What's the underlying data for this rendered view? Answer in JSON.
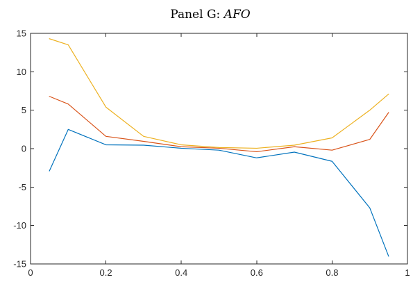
{
  "chart_data": {
    "type": "line",
    "title_prefix": "Panel G: ",
    "title_emphasis": "AFO",
    "xlabel": "",
    "ylabel": "",
    "xlim": [
      0,
      1
    ],
    "ylim": [
      -15,
      15
    ],
    "x_ticks": [
      0,
      0.2,
      0.4,
      0.6,
      0.8,
      1
    ],
    "x_tick_labels": [
      "0",
      "0.2",
      "0.4",
      "0.6",
      "0.8",
      "1"
    ],
    "y_ticks": [
      15,
      10,
      5,
      0,
      -5,
      -10,
      -15
    ],
    "y_tick_labels": [
      "15",
      "10",
      "5",
      "0",
      "-5",
      "-10",
      "-15"
    ],
    "grid": false,
    "legend": "none",
    "x": [
      0.05,
      0.1,
      0.2,
      0.3,
      0.4,
      0.5,
      0.6,
      0.7,
      0.8,
      0.9,
      0.95
    ],
    "series": [
      {
        "color": "#0072BD",
        "values": [
          -2.9,
          2.5,
          0.5,
          0.45,
          0.05,
          -0.2,
          -1.2,
          -0.45,
          -1.65,
          -7.7,
          -14.0
        ]
      },
      {
        "color": "#D95319",
        "values": [
          6.8,
          5.8,
          1.6,
          0.95,
          0.25,
          0.05,
          -0.4,
          0.25,
          -0.2,
          1.2,
          4.7
        ]
      },
      {
        "color": "#EDB120",
        "values": [
          14.3,
          13.5,
          5.4,
          1.6,
          0.5,
          0.15,
          0.05,
          0.45,
          1.4,
          5.0,
          7.1
        ]
      }
    ]
  }
}
